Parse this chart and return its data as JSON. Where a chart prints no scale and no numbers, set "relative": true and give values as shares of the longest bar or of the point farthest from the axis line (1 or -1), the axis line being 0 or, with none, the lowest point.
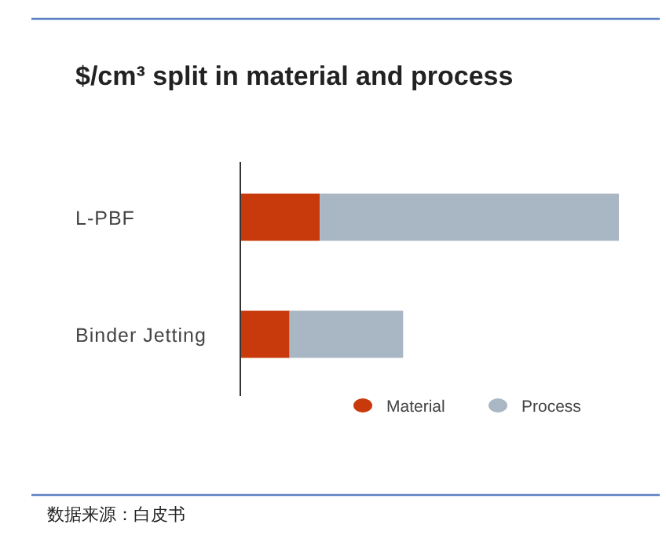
{
  "chart_data": {
    "type": "bar",
    "orientation": "horizontal",
    "stacked": true,
    "relative": true,
    "title": "$/cm³ split in material and process",
    "categories": [
      "L-PBF",
      "Binder Jetting"
    ],
    "series": [
      {
        "name": "Material",
        "color": "#c83a0c",
        "values": [
          0.21,
          0.13
        ]
      },
      {
        "name": "Process",
        "color": "#a9b7c5",
        "values": [
          0.79,
          0.3
        ]
      }
    ],
    "legend": "bottom right",
    "annotations": [
      "数据来源：白皮书"
    ]
  }
}
